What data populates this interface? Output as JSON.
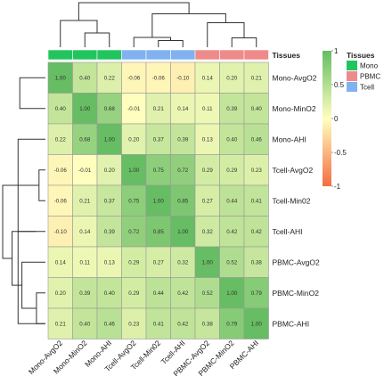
{
  "chart_data": {
    "type": "heatmap",
    "rows": [
      "Mono-AvgO2",
      "Mono-MinO2",
      "Mono-AHI",
      "Tcell-AvgO2",
      "Tcell-Min02",
      "Tcell-AHI",
      "PBMC-AvgO2",
      "PBMC-MinO2",
      "PBMC-AHI"
    ],
    "columns": [
      "Mono-AvgO2",
      "Mono-MinO2",
      "Mono-AHI",
      "Tcell-AvgO2",
      "Tcell-Min02",
      "Tcell-AHI",
      "PBMC-AvgO2",
      "PBMC-MinO2",
      "PBMC-AHI"
    ],
    "values": [
      [
        1.0,
        0.4,
        0.22,
        -0.06,
        -0.06,
        -0.1,
        0.14,
        0.2,
        0.21
      ],
      [
        0.4,
        1.0,
        0.68,
        -0.01,
        0.21,
        0.14,
        0.11,
        0.39,
        0.4
      ],
      [
        0.22,
        0.68,
        1.0,
        0.2,
        0.37,
        0.39,
        0.13,
        0.4,
        0.46
      ],
      [
        -0.06,
        -0.01,
        0.2,
        1.0,
        0.75,
        0.72,
        0.29,
        0.29,
        0.23
      ],
      [
        -0.06,
        0.21,
        0.37,
        0.75,
        1.0,
        0.85,
        0.27,
        0.44,
        0.41
      ],
      [
        -0.1,
        0.14,
        0.39,
        0.72,
        0.85,
        1.0,
        0.32,
        0.42,
        0.42
      ],
      [
        0.14,
        0.11,
        0.13,
        0.29,
        0.27,
        0.32,
        1.0,
        0.52,
        0.38
      ],
      [
        0.2,
        0.39,
        0.4,
        0.29,
        0.44,
        0.42,
        0.52,
        1.0,
        0.79
      ],
      [
        0.21,
        0.4,
        0.46,
        0.23,
        0.41,
        0.42,
        0.38,
        0.79,
        1.0
      ]
    ],
    "value_labels": [
      [
        "1.00",
        "0.40",
        "0.22",
        "-0.06",
        "-0.06",
        "-0.10",
        "0.14",
        "0.20",
        "0.21"
      ],
      [
        "0.40",
        "1.00",
        "0.68",
        "-0.01",
        "0.21",
        "0.14",
        "0.11",
        "0.39",
        "0.40"
      ],
      [
        "0.22",
        "0.68",
        "1.00",
        "0.20",
        "0.37",
        "0.39",
        "0.13",
        "0.40",
        "0.46"
      ],
      [
        "-0.06",
        "-0.01",
        "0.20",
        "1.00",
        "0.75",
        "0.72",
        "0.29",
        "0.29",
        "0.23"
      ],
      [
        "-0.06",
        "0.21",
        "0.37",
        "0.75",
        "1.00",
        "0.85",
        "0.27",
        "0.44",
        "0.41"
      ],
      [
        "-0.10",
        "0.14",
        "0.39",
        "0.72",
        "0.85",
        "1.00",
        "0.32",
        "0.42",
        "0.42"
      ],
      [
        "0.14",
        "0.11",
        "0.13",
        "0.29",
        "0.27",
        "0.32",
        "1.00",
        "0.52",
        "0.38"
      ],
      [
        "0.20",
        "0.39",
        "0.40",
        "0.29",
        "0.44",
        "0.42",
        "0.52",
        "1.00",
        "0.79"
      ],
      [
        "0.21",
        "0.40",
        "0.46",
        "0.23",
        "0.41",
        "0.42",
        "0.38",
        "0.79",
        "1.00"
      ]
    ],
    "annotation": {
      "title": "Tissues",
      "column_groups": [
        "Mono",
        "Mono",
        "Mono",
        "Tcell",
        "Tcell",
        "Tcell",
        "PBMC",
        "PBMC",
        "PBMC"
      ],
      "legend": [
        {
          "label": "Mono",
          "color": "#21c55e"
        },
        {
          "label": "PBMC",
          "color": "#ef8a8a"
        },
        {
          "label": "Tcell",
          "color": "#7fb2ef"
        }
      ]
    },
    "color_scale": {
      "range": [
        -1,
        1
      ],
      "ticks": [
        "1",
        "0.5",
        "0",
        "-0.5",
        "-1"
      ],
      "tick_values": [
        1,
        0.5,
        0,
        -0.5,
        -1
      ],
      "low_color": "#f46d43",
      "mid_color": "#ffffbf",
      "high_color": "#66bd63"
    },
    "row_dendrogram": [
      {
        "a": 0,
        "b": 1,
        "h": 0.6
      },
      {
        "a": 2,
        "b": 8,
        "h": 0.64
      },
      {
        "a": 3,
        "b": 4,
        "h": 0.15
      },
      {
        "a": 10,
        "b": 5,
        "h": 0.22
      },
      {
        "a": 7,
        "b": 8,
        "h": 0.21
      },
      {
        "a": 6,
        "b": 13,
        "h": 0.55
      },
      {
        "a": 12,
        "b": 14,
        "h": 0.78
      },
      {
        "a": 11,
        "b": 15,
        "h": 1.0
      }
    ],
    "column_dendrogram": [
      {
        "a": 1,
        "b": 2,
        "h": 0.32
      },
      {
        "a": 0,
        "b": 9,
        "h": 0.6
      },
      {
        "a": 4,
        "b": 5,
        "h": 0.15
      },
      {
        "a": 3,
        "b": 11,
        "h": 0.22
      },
      {
        "a": 7,
        "b": 8,
        "h": 0.21
      },
      {
        "a": 6,
        "b": 13,
        "h": 0.55
      },
      {
        "a": 12,
        "b": 14,
        "h": 0.75
      },
      {
        "a": 10,
        "b": 15,
        "h": 1.0
      }
    ]
  }
}
